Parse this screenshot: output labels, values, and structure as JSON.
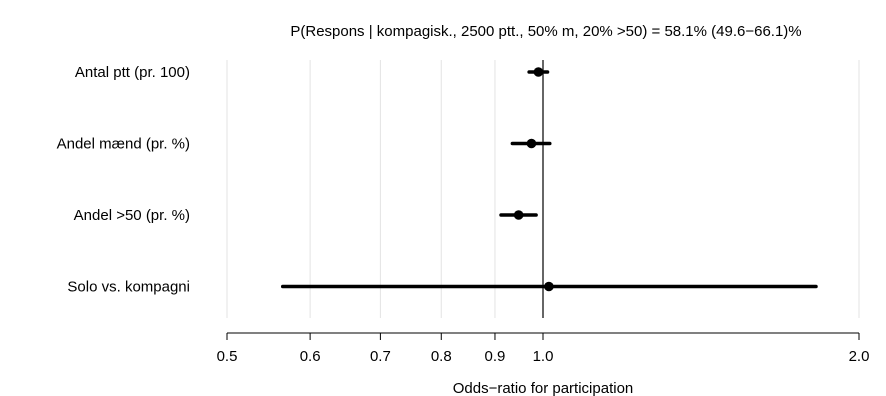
{
  "chart_data": {
    "type": "forest",
    "title": "P(Respons | kompagisk., 2500 ptt., 50% m, 20% >50) = 58.1% (49.6−66.1)%",
    "xlabel": "Odds−ratio for participation",
    "x_scale": "log",
    "xlim": [
      0.5,
      2.0
    ],
    "reference_line": 1.0,
    "grid": "vertical-at-ticks",
    "ticks": [
      {
        "value": 0.5,
        "label": "0.5"
      },
      {
        "value": 0.6,
        "label": "0.6"
      },
      {
        "value": 0.7,
        "label": "0.7"
      },
      {
        "value": 0.8,
        "label": "0.8"
      },
      {
        "value": 0.9,
        "label": "0.9"
      },
      {
        "value": 1.0,
        "label": "1.0"
      },
      {
        "value": 2.0,
        "label": "2.0"
      }
    ],
    "rows": [
      {
        "label": "Antal ptt (pr. 100)",
        "estimate": 0.99,
        "lower": 0.97,
        "upper": 1.01
      },
      {
        "label": "Andel mænd (pr. %)",
        "estimate": 0.975,
        "lower": 0.935,
        "upper": 1.015
      },
      {
        "label": "Andel >50 (pr. %)",
        "estimate": 0.948,
        "lower": 0.912,
        "upper": 0.985
      },
      {
        "label": "Solo vs. kompagni",
        "estimate": 1.013,
        "lower": 0.565,
        "upper": 1.82
      }
    ]
  }
}
